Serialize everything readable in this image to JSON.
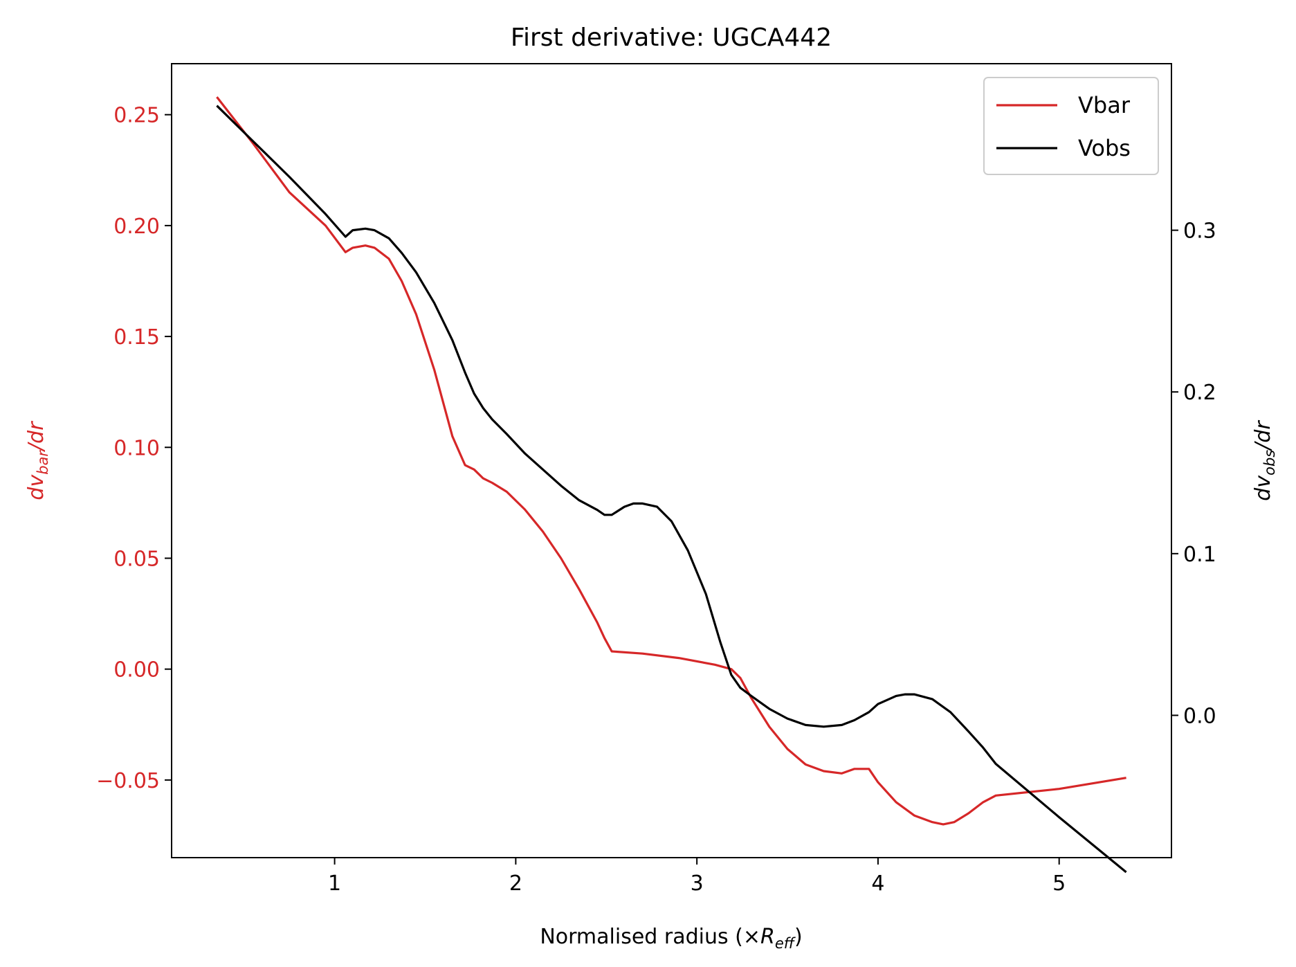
{
  "chart_data": {
    "type": "line",
    "title": "First derivative: UGCA442",
    "xlabel": {
      "prefix": "Normalised radius (×",
      "var": "R",
      "sub": "eff",
      "suffix": ")"
    },
    "ylabel_left": {
      "var": "dv",
      "sub": "bar",
      "suffix": "/dr"
    },
    "ylabel_right": {
      "var": "dv",
      "sub": "obs",
      "suffix": "/dr"
    },
    "xlim": [
      0.1,
      5.62
    ],
    "ylim_left": [
      -0.085,
      0.273
    ],
    "ylim_right": [
      -0.088,
      0.403
    ],
    "xticks": [
      1,
      2,
      3,
      4,
      5
    ],
    "xtick_labels": [
      "1",
      "2",
      "3",
      "4",
      "5"
    ],
    "yticks_left": [
      0.25,
      0.2,
      0.15,
      0.1,
      0.05,
      0.0,
      -0.05
    ],
    "ytick_labels_left": [
      "0.25",
      "0.20",
      "0.15",
      "0.10",
      "0.05",
      "0.00",
      "−0.05"
    ],
    "yticks_right": [
      0.3,
      0.2,
      0.1,
      0.0
    ],
    "ytick_labels_right": [
      "0.3",
      "0.2",
      "0.1",
      "0.0"
    ],
    "legend_position": "top-right",
    "grid": false,
    "colors": {
      "vbar": "#d62728",
      "vobs": "#000000",
      "axes": "#000000"
    },
    "series": [
      {
        "name": "Vbar",
        "axis": "left",
        "x": [
          0.35,
          0.55,
          0.75,
          0.95,
          1.06,
          1.1,
          1.17,
          1.22,
          1.3,
          1.37,
          1.45,
          1.55,
          1.65,
          1.72,
          1.77,
          1.82,
          1.87,
          1.95,
          2.05,
          2.15,
          2.25,
          2.35,
          2.45,
          2.49,
          2.53,
          2.7,
          2.9,
          3.1,
          3.19,
          3.24,
          3.3,
          3.4,
          3.5,
          3.6,
          3.7,
          3.8,
          3.87,
          3.95,
          4.0,
          4.1,
          4.2,
          4.3,
          4.36,
          4.42,
          4.5,
          4.58,
          4.65,
          5.0,
          5.37
        ],
        "values": [
          0.258,
          0.237,
          0.215,
          0.2,
          0.188,
          0.19,
          0.191,
          0.19,
          0.185,
          0.175,
          0.16,
          0.135,
          0.105,
          0.092,
          0.09,
          0.086,
          0.084,
          0.08,
          0.072,
          0.062,
          0.05,
          0.036,
          0.021,
          0.014,
          0.008,
          0.007,
          0.005,
          0.002,
          0.0,
          -0.004,
          -0.013,
          -0.026,
          -0.036,
          -0.043,
          -0.046,
          -0.047,
          -0.045,
          -0.045,
          -0.051,
          -0.06,
          -0.066,
          -0.069,
          -0.07,
          -0.069,
          -0.065,
          -0.06,
          -0.057,
          -0.054,
          -0.049
        ]
      },
      {
        "name": "Vobs",
        "axis": "right",
        "x": [
          0.35,
          0.55,
          0.75,
          0.95,
          1.06,
          1.1,
          1.17,
          1.22,
          1.3,
          1.37,
          1.45,
          1.55,
          1.65,
          1.72,
          1.77,
          1.82,
          1.87,
          1.95,
          2.05,
          2.15,
          2.25,
          2.35,
          2.45,
          2.49,
          2.53,
          2.6,
          2.65,
          2.7,
          2.78,
          2.86,
          2.95,
          3.05,
          3.13,
          3.19,
          3.24,
          3.3,
          3.4,
          3.5,
          3.6,
          3.7,
          3.8,
          3.87,
          3.95,
          4.0,
          4.1,
          4.15,
          4.2,
          4.3,
          4.4,
          4.5,
          4.58,
          4.65,
          5.0,
          5.37
        ],
        "values": [
          0.377,
          0.355,
          0.333,
          0.31,
          0.296,
          0.3,
          0.301,
          0.3,
          0.295,
          0.286,
          0.274,
          0.255,
          0.232,
          0.212,
          0.199,
          0.19,
          0.183,
          0.174,
          0.162,
          0.152,
          0.142,
          0.133,
          0.127,
          0.124,
          0.124,
          0.129,
          0.131,
          0.131,
          0.129,
          0.12,
          0.102,
          0.075,
          0.045,
          0.025,
          0.017,
          0.012,
          0.004,
          -0.002,
          -0.006,
          -0.007,
          -0.006,
          -0.003,
          0.002,
          0.007,
          0.012,
          0.013,
          0.013,
          0.01,
          0.002,
          -0.01,
          -0.02,
          -0.03,
          -0.063,
          -0.097
        ]
      }
    ]
  }
}
